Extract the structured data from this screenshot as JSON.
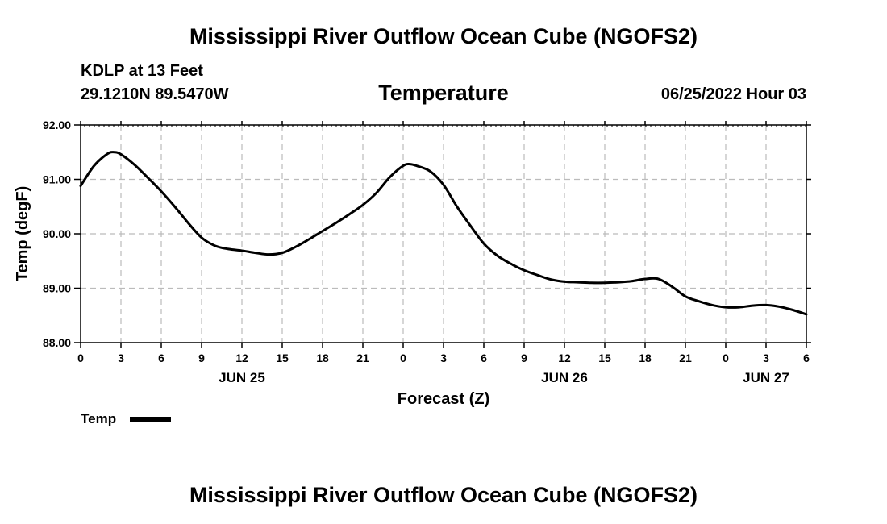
{
  "header": {
    "title": "Mississippi River Outflow Ocean Cube (NGOFS2)",
    "station": "KDLP at 13 Feet",
    "coords": "29.1210N  89.5470W",
    "subtitle": "Temperature",
    "datetime": "06/25/2022 Hour 03"
  },
  "footer": {
    "title": "Mississippi River Outflow Ocean Cube (NGOFS2)"
  },
  "colors": {
    "line": "#000000",
    "grid": "#bbbbbb",
    "background": "#ffffff"
  },
  "chart_data": {
    "type": "line",
    "title": "Temperature",
    "xlabel": "Forecast (Z)",
    "ylabel": "Temp (degF)",
    "xlim": [
      0,
      54
    ],
    "ylim": [
      88.0,
      92.0
    ],
    "yticks": [
      88.0,
      89.0,
      90.0,
      91.0,
      92.0
    ],
    "ytick_labels": [
      "88.00",
      "89.00",
      "90.00",
      "91.00",
      "92.00"
    ],
    "xticks": [
      0,
      3,
      6,
      9,
      12,
      15,
      18,
      21,
      24,
      27,
      30,
      33,
      36,
      39,
      42,
      45,
      48,
      51,
      54
    ],
    "xtick_labels": [
      "0",
      "3",
      "6",
      "9",
      "12",
      "15",
      "18",
      "21",
      "0",
      "3",
      "6",
      "9",
      "12",
      "15",
      "18",
      "21",
      "0",
      "3",
      "6"
    ],
    "day_labels": [
      {
        "x": 12,
        "label": "JUN 25"
      },
      {
        "x": 36,
        "label": "JUN 26"
      },
      {
        "x": 51,
        "label": "JUN 27"
      }
    ],
    "grid": true,
    "legend": {
      "position": "bottom-left",
      "entries": [
        "Temp"
      ]
    },
    "series": [
      {
        "name": "Temp",
        "x": [
          0,
          1,
          2,
          2.5,
          3,
          4,
          5,
          6,
          7,
          8,
          9,
          10,
          11,
          12,
          13,
          14,
          15,
          16,
          17,
          18,
          19,
          20,
          21,
          22,
          23,
          24,
          24.5,
          25,
          26,
          27,
          28,
          29,
          30,
          31,
          32,
          33,
          34,
          35,
          36,
          37,
          38,
          39,
          40,
          41,
          42,
          43,
          44,
          45,
          46,
          47,
          48,
          49,
          50,
          51,
          52,
          53,
          54
        ],
        "values": [
          90.88,
          91.25,
          91.47,
          91.5,
          91.46,
          91.27,
          91.03,
          90.78,
          90.5,
          90.2,
          89.93,
          89.78,
          89.72,
          89.69,
          89.65,
          89.62,
          89.65,
          89.76,
          89.9,
          90.05,
          90.2,
          90.36,
          90.53,
          90.75,
          91.04,
          91.25,
          91.28,
          91.25,
          91.15,
          90.9,
          90.5,
          90.15,
          89.82,
          89.6,
          89.45,
          89.33,
          89.24,
          89.16,
          89.12,
          89.11,
          89.1,
          89.1,
          89.11,
          89.13,
          89.17,
          89.17,
          89.03,
          88.85,
          88.76,
          88.69,
          88.65,
          88.65,
          88.68,
          88.69,
          88.66,
          88.6,
          88.52
        ]
      }
    ]
  }
}
